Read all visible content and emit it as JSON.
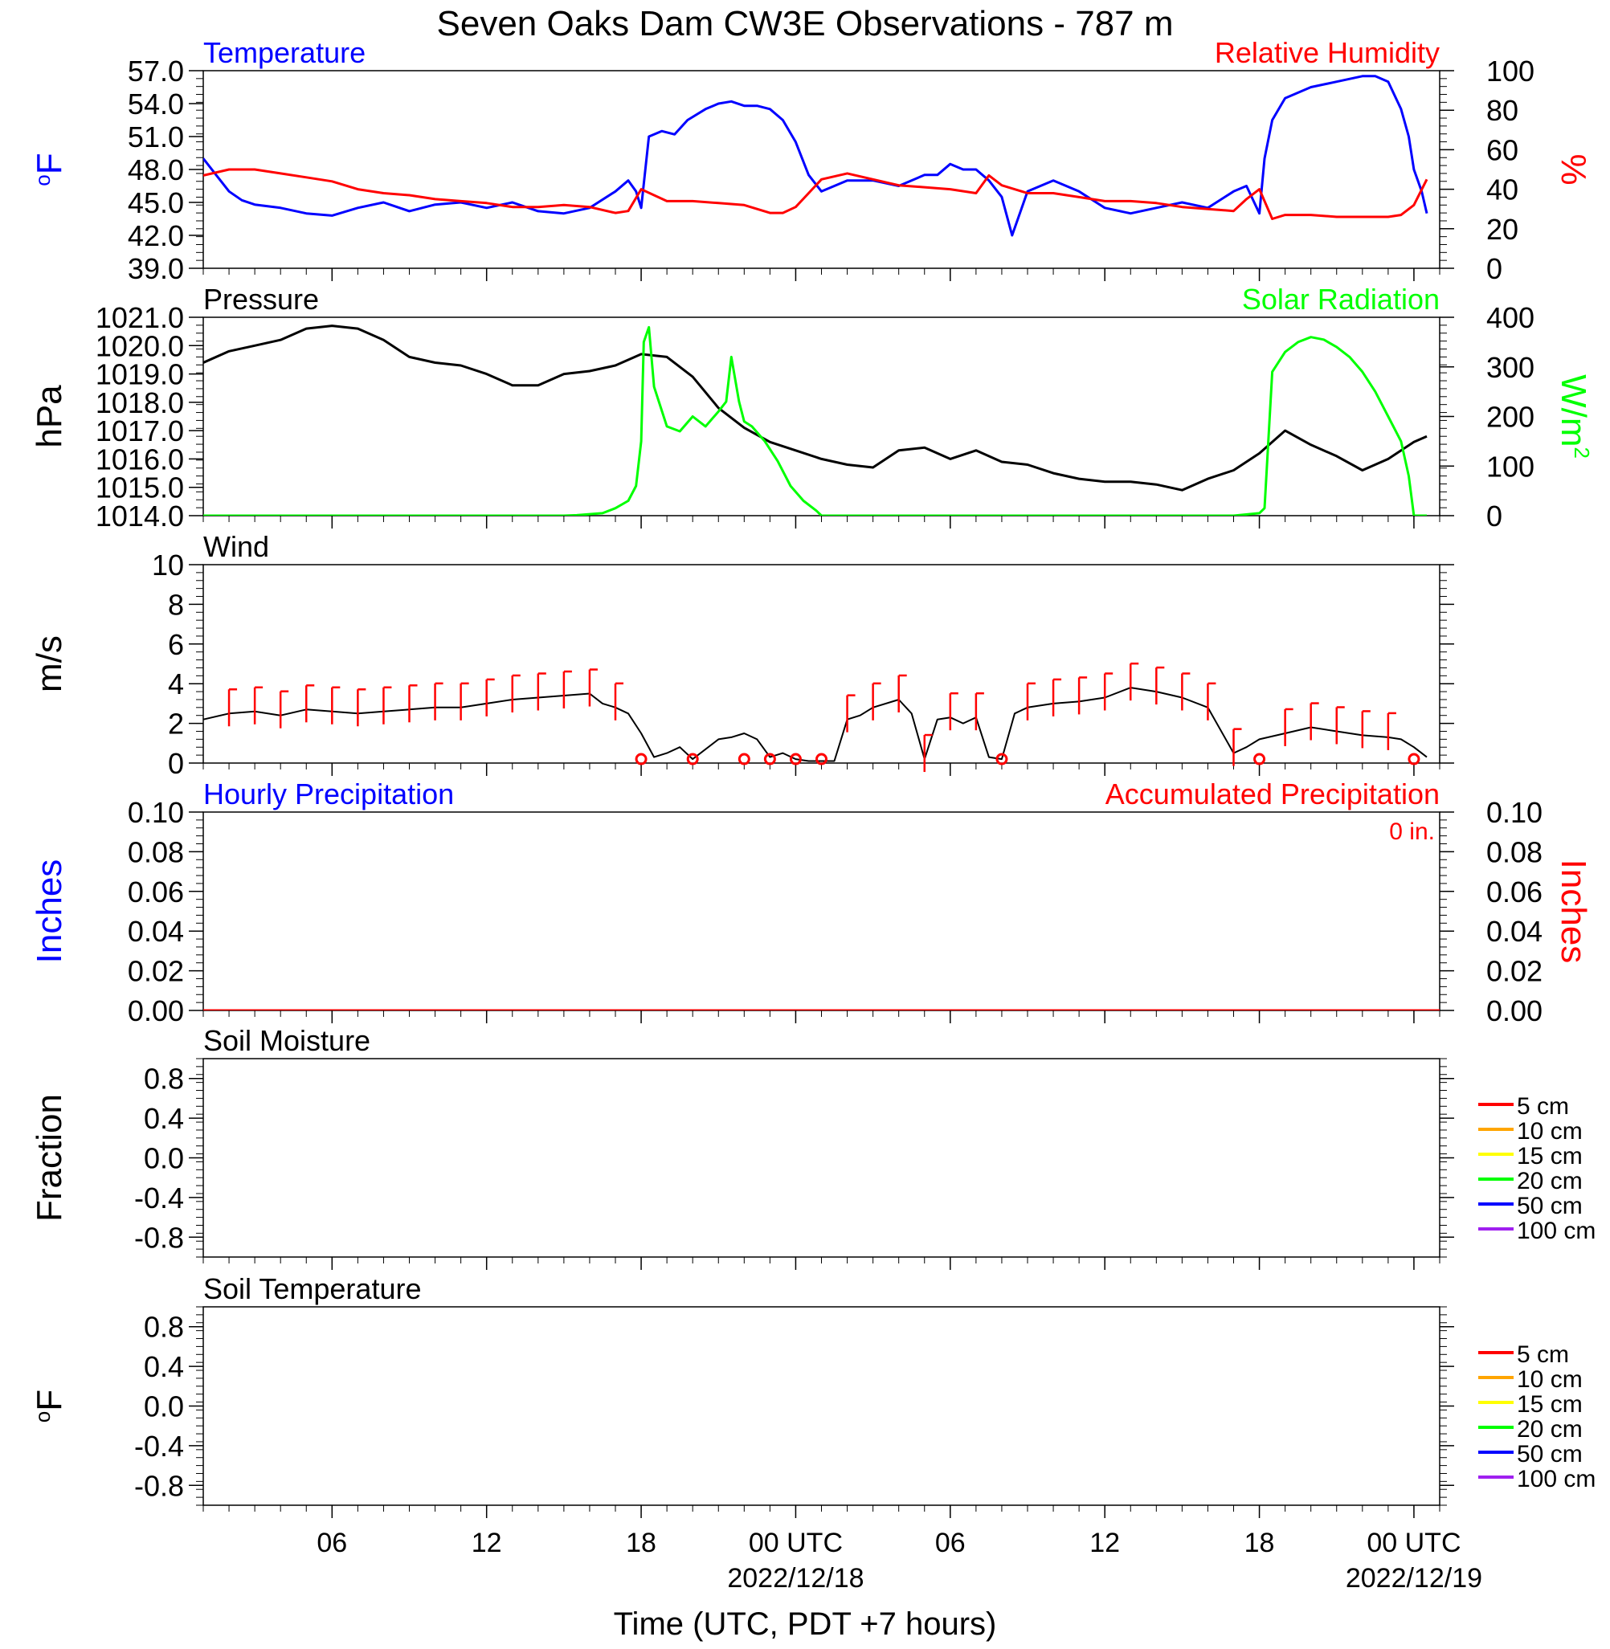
{
  "title": "Seven Oaks Dam CW3E Observations - 787 m",
  "colors": {
    "temperature": "#0000ff",
    "humidity": "#ff0000",
    "pressure": "#000000",
    "solar": "#00ff00",
    "wind": "#000000",
    "wind_barb": "#ff0000",
    "precip_hourly": "#0000ff",
    "precip_accum": "#ff0000",
    "soil_5": "#ff0000",
    "soil_10": "#ffa500",
    "soil_15": "#ffff00",
    "soil_20": "#00ff00",
    "soil_50": "#0000ff",
    "soil_100": "#a020f0"
  },
  "x_axis": {
    "label": "Time (UTC, PDT +7 hours)",
    "range_hours": [
      0,
      48
    ],
    "ticks": [
      {
        "h": 5,
        "label": "06"
      },
      {
        "h": 11,
        "label": "12"
      },
      {
        "h": 17,
        "label": "18"
      },
      {
        "h": 23,
        "label": "00 UTC",
        "sub": "2022/12/18"
      },
      {
        "h": 29,
        "label": "06"
      },
      {
        "h": 35,
        "label": "12"
      },
      {
        "h": 41,
        "label": "18"
      },
      {
        "h": 47,
        "label": "00 UTC",
        "sub": "2022/12/19"
      }
    ]
  },
  "chart_data": [
    {
      "type": "line",
      "panel": "temperature_humidity",
      "left_title": "Temperature",
      "right_title": "Relative Humidity",
      "ylabel_left": "oF",
      "ylabel_right": "%",
      "ylim_left": [
        39,
        57
      ],
      "yticks_left": [
        "57.0",
        "54.0",
        "51.0",
        "48.0",
        "45.0",
        "42.0",
        "39.0"
      ],
      "ylim_right": [
        0,
        100
      ],
      "yticks_right": [
        "100",
        "80",
        "60",
        "40",
        "20",
        "0"
      ],
      "series": [
        {
          "name": "Temperature",
          "axis": "left",
          "x": [
            0,
            0.5,
            1,
            1.5,
            2,
            3,
            4,
            5,
            6,
            7,
            8,
            9,
            10,
            11,
            12,
            13,
            14,
            15,
            16,
            16.5,
            16.8,
            17,
            17.3,
            17.8,
            18.3,
            18.8,
            19.5,
            20,
            20.5,
            21,
            21.5,
            22,
            22.5,
            23,
            23.5,
            24,
            25,
            26,
            27,
            28,
            28.5,
            29,
            29.5,
            30,
            30.5,
            31,
            31.4,
            32,
            33,
            34,
            35,
            36,
            37,
            38,
            39,
            40,
            40.5,
            41,
            41.2,
            41.5,
            42,
            43,
            44,
            45,
            45.5,
            46,
            46.5,
            46.8,
            47,
            47.3,
            47.5
          ],
          "y": [
            49,
            47.5,
            46,
            45.2,
            44.8,
            44.5,
            44,
            43.8,
            44.5,
            45,
            44.2,
            44.8,
            45,
            44.5,
            45,
            44.2,
            44,
            44.5,
            46,
            47,
            46,
            44.5,
            51,
            51.5,
            51.2,
            52.5,
            53.5,
            54,
            54.2,
            53.8,
            53.8,
            53.5,
            52.5,
            50.5,
            47.5,
            46,
            47,
            47,
            46.5,
            47.5,
            47.5,
            48.5,
            48,
            48,
            47,
            45.5,
            42,
            46,
            47,
            46,
            44.5,
            44,
            44.5,
            45,
            44.5,
            46,
            46.5,
            44,
            49,
            52.5,
            54.5,
            55.5,
            56,
            56.5,
            56.5,
            56,
            53.5,
            51,
            48,
            46,
            44
          ]
        },
        {
          "name": "Relative Humidity",
          "axis": "right",
          "x": [
            0,
            1,
            2,
            3,
            4,
            5,
            6,
            7,
            8,
            9,
            10,
            11,
            12,
            13,
            14,
            15,
            16,
            16.5,
            17,
            18,
            19,
            20,
            21,
            22,
            22.5,
            23,
            23.5,
            24,
            25,
            26,
            27,
            28,
            29,
            30,
            30.5,
            31,
            32,
            33,
            34,
            35,
            36,
            37,
            38,
            39,
            40,
            40.5,
            41,
            41.5,
            42,
            43,
            44,
            45,
            46,
            46.5,
            47,
            47.5
          ],
          "y": [
            47,
            50,
            50,
            48,
            46,
            44,
            40,
            38,
            37,
            35,
            34,
            33,
            31,
            31,
            32,
            31,
            28,
            29,
            40,
            34,
            34,
            33,
            32,
            28,
            28,
            31,
            38,
            45,
            48,
            45,
            42,
            41,
            40,
            38,
            47,
            42,
            38,
            38,
            36,
            34,
            34,
            33,
            31,
            30,
            29,
            35,
            40,
            25,
            27,
            27,
            26,
            26,
            26,
            27,
            32,
            45
          ]
        }
      ]
    },
    {
      "type": "line",
      "panel": "pressure_solar",
      "left_title": "Pressure",
      "right_title": "Solar Radiation",
      "ylabel_left": "hPa",
      "ylabel_right": "W/m",
      "ylabel_right_sup": "2",
      "ylim_left": [
        1014,
        1021
      ],
      "yticks_left": [
        "1021.0",
        "1020.0",
        "1019.0",
        "1018.0",
        "1017.0",
        "1016.0",
        "1015.0",
        "1014.0"
      ],
      "ylim_right": [
        0,
        400
      ],
      "yticks_right": [
        "400",
        "300",
        "200",
        "100",
        "0"
      ],
      "series": [
        {
          "name": "Pressure",
          "axis": "left",
          "x": [
            0,
            1,
            2,
            3,
            4,
            5,
            6,
            7,
            8,
            9,
            10,
            11,
            12,
            13,
            14,
            15,
            16,
            17,
            18,
            19,
            20,
            21,
            22,
            23,
            24,
            25,
            26,
            27,
            28,
            29,
            30,
            31,
            32,
            33,
            34,
            35,
            36,
            37,
            38,
            39,
            40,
            41,
            42,
            43,
            44,
            45,
            46,
            47,
            47.5
          ],
          "y": [
            1019.4,
            1019.8,
            1020,
            1020.2,
            1020.6,
            1020.7,
            1020.6,
            1020.2,
            1019.6,
            1019.4,
            1019.3,
            1019,
            1018.6,
            1018.6,
            1019,
            1019.1,
            1019.3,
            1019.7,
            1019.6,
            1018.9,
            1017.8,
            1017.1,
            1016.6,
            1016.3,
            1016,
            1015.8,
            1015.7,
            1016.3,
            1016.4,
            1016,
            1016.3,
            1015.9,
            1015.8,
            1015.5,
            1015.3,
            1015.2,
            1015.2,
            1015.1,
            1014.9,
            1015.3,
            1015.6,
            1016.2,
            1017,
            1016.5,
            1016.1,
            1015.6,
            1016,
            1016.6,
            1016.8
          ]
        },
        {
          "name": "Solar Radiation",
          "axis": "right",
          "x": [
            0,
            14,
            14.5,
            15.5,
            16,
            16.5,
            16.8,
            17,
            17.1,
            17.3,
            17.5,
            18,
            18.5,
            19,
            19.5,
            20,
            20.3,
            20.5,
            20.8,
            21,
            21.3,
            21.8,
            22.3,
            22.8,
            23.3,
            23.8,
            24,
            40,
            41,
            41.2,
            41.5,
            42,
            42.5,
            43,
            43.5,
            44,
            44.5,
            45,
            45.5,
            46,
            46.5,
            46.8,
            47,
            47.5
          ],
          "y": [
            0,
            0,
            1,
            5,
            15,
            30,
            60,
            150,
            350,
            380,
            260,
            180,
            170,
            200,
            180,
            210,
            230,
            320,
            230,
            190,
            180,
            150,
            110,
            60,
            30,
            10,
            0,
            0,
            5,
            15,
            290,
            330,
            350,
            360,
            355,
            340,
            320,
            290,
            250,
            200,
            150,
            80,
            0,
            0
          ]
        }
      ]
    },
    {
      "type": "line",
      "panel": "wind",
      "left_title": "Wind",
      "ylabel_left": "m/s",
      "ylim_left": [
        0,
        10
      ],
      "yticks_left": [
        "10",
        "8",
        "6",
        "4",
        "2",
        "0"
      ],
      "series": [
        {
          "name": "Wind",
          "axis": "left",
          "x": [
            0,
            1,
            2,
            3,
            4,
            5,
            6,
            7,
            8,
            9,
            10,
            11,
            12,
            13,
            14,
            15,
            15.5,
            16,
            16.5,
            17,
            17.5,
            18,
            18.5,
            19,
            20,
            20.5,
            21,
            21.5,
            22,
            22.5,
            23,
            23.5,
            24,
            24.5,
            25,
            25.5,
            26,
            27,
            27.5,
            28,
            28.5,
            29,
            29.5,
            30,
            30.5,
            31,
            31.5,
            32,
            33,
            34,
            35,
            36,
            37,
            38,
            39,
            40,
            40.5,
            41,
            42,
            43,
            44,
            45,
            46,
            46.5,
            47,
            47.5
          ],
          "y": [
            2.2,
            2.5,
            2.6,
            2.4,
            2.7,
            2.6,
            2.5,
            2.6,
            2.7,
            2.8,
            2.8,
            3,
            3.2,
            3.3,
            3.4,
            3.5,
            3,
            2.8,
            2.5,
            1.5,
            0.3,
            0.5,
            0.8,
            0.2,
            1.2,
            1.3,
            1.5,
            1.2,
            0.3,
            0.5,
            0.2,
            0.1,
            0.1,
            0.1,
            2.2,
            2.4,
            2.8,
            3.2,
            2.5,
            0.2,
            2.2,
            2.3,
            2,
            2.3,
            0.3,
            0.2,
            2.5,
            2.8,
            3,
            3.1,
            3.3,
            3.8,
            3.6,
            3.3,
            2.8,
            0.5,
            0.8,
            1.2,
            1.5,
            1.8,
            1.6,
            1.4,
            1.3,
            1.2,
            0.8,
            0.3
          ]
        }
      ],
      "barbs_x": [
        1,
        2,
        3,
        4,
        5,
        6,
        7,
        8,
        9,
        10,
        11,
        12,
        13,
        14,
        15,
        16,
        25,
        26,
        27,
        28,
        29,
        30,
        32,
        33,
        34,
        35,
        36,
        37,
        38,
        39,
        40,
        42,
        43,
        44,
        45,
        46
      ],
      "calm_x": [
        17,
        19,
        21,
        22,
        23,
        24,
        31,
        41,
        47
      ]
    },
    {
      "type": "line",
      "panel": "precipitation",
      "left_title": "Hourly Precipitation",
      "right_title": "Accumulated Precipitation",
      "accum_note": "0 in.",
      "ylabel_left": "Inches",
      "ylabel_right": "Inches",
      "ylim_left": [
        0,
        0.1
      ],
      "yticks_left": [
        "0.10",
        "0.08",
        "0.06",
        "0.04",
        "0.02",
        "0.00"
      ],
      "ylim_right": [
        0,
        0.1
      ],
      "yticks_right": [
        "0.10",
        "0.08",
        "0.06",
        "0.04",
        "0.02",
        "0.00"
      ],
      "series": [
        {
          "name": "Accumulated Precipitation",
          "axis": "right",
          "x": [
            0,
            48
          ],
          "y": [
            0,
            0
          ]
        }
      ]
    },
    {
      "type": "line",
      "panel": "soil_moisture",
      "left_title": "Soil Moisture",
      "ylabel_left": "Fraction",
      "ylim_left": [
        -1,
        1
      ],
      "yticks_left": [
        "0.8",
        "0.4",
        "0.0",
        "-0.4",
        "-0.8"
      ],
      "legend": [
        "5 cm",
        "10 cm",
        "15 cm",
        "20 cm",
        "50 cm",
        "100 cm"
      ],
      "series": []
    },
    {
      "type": "line",
      "panel": "soil_temperature",
      "left_title": "Soil Temperature",
      "ylabel_left": "oF",
      "ylim_left": [
        -1,
        1
      ],
      "yticks_left": [
        "0.8",
        "0.4",
        "0.0",
        "-0.4",
        "-0.8"
      ],
      "legend": [
        "5 cm",
        "10 cm",
        "15 cm",
        "20 cm",
        "50 cm",
        "100 cm"
      ],
      "series": []
    }
  ]
}
